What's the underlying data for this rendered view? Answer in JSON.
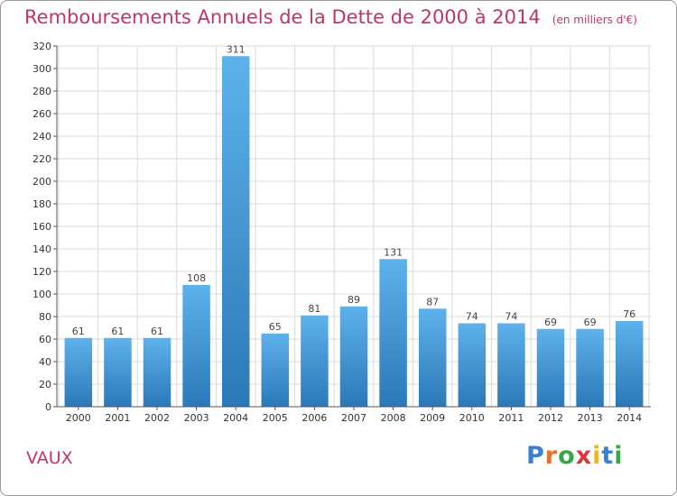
{
  "title": "Remboursements Annuels de la Dette de 2000 à 2014",
  "subtitle": "(en milliers d'€)",
  "place": "VAUX",
  "logo": {
    "text": "Proxiti",
    "letters": [
      {
        "ch": "P",
        "color": "#3a7fd0"
      },
      {
        "ch": "r",
        "color": "#e8732a"
      },
      {
        "ch": "o",
        "color": "#3aa64a"
      },
      {
        "ch": "x",
        "color": "#d63a3a"
      },
      {
        "ch": "i",
        "color": "#e8b82a"
      },
      {
        "ch": "t",
        "color": "#3a7fd0"
      },
      {
        "ch": "i",
        "color": "#3aa64a"
      }
    ]
  },
  "colors": {
    "title": "#c2336e",
    "bar_top": "#5eb2ec",
    "bar_bottom": "#2a78b8",
    "grid": "#d9d9d9",
    "axis": "#555555"
  },
  "chart_data": {
    "type": "bar",
    "title": "Remboursements Annuels de la Dette de 2000 à 2014",
    "subtitle": "(en milliers d'€)",
    "xlabel": "",
    "ylabel": "",
    "categories": [
      "2000",
      "2001",
      "2002",
      "2003",
      "2004",
      "2005",
      "2006",
      "2007",
      "2008",
      "2009",
      "2010",
      "2011",
      "2012",
      "2013",
      "2014"
    ],
    "values": [
      61,
      61,
      61,
      108,
      311,
      65,
      81,
      89,
      131,
      87,
      74,
      74,
      69,
      69,
      76
    ],
    "ylim": [
      0,
      320
    ],
    "yticks": [
      0,
      20,
      40,
      60,
      80,
      100,
      120,
      140,
      160,
      180,
      200,
      220,
      240,
      260,
      280,
      300,
      320
    ],
    "grid": true,
    "legend": "none"
  }
}
